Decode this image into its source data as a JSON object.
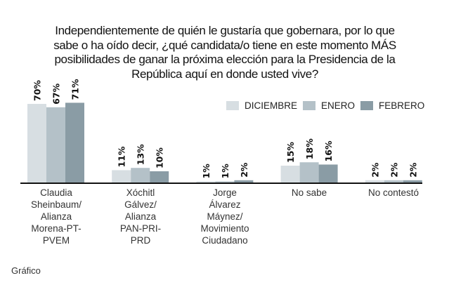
{
  "chart_data": {
    "type": "bar",
    "title": "Independientemente de quién le gustaría que gobernara, por lo que sabe o ha oído decir, ¿qué candidata/o tiene en este momento MÁS posibilidades de ganar la próxima elección para la Presidencia de la República aquí en donde usted vive?",
    "title_lines": [
      "Independientemente de quién le gustaría que gobernara, por lo que",
      "sabe o ha oído decir, ¿qué candidata/o tiene en este momento MÁS",
      "posibilidades de ganar la próxima elección para la Presidencia de la",
      "República aquí en donde usted vive?"
    ],
    "categories": [
      "Claudia\nSheinbaum/\nAlianza\nMorena-PT-\nPVEM",
      "Xóchitl\nGálvez/\nAlianza\nPAN-PRI-\nPRD",
      "Jorge\nÁlvarez\nMáynez/\nMovimiento\nCiudadano",
      "No sabe",
      "No contestó"
    ],
    "series": [
      {
        "name": "DICIEMBRE",
        "color": "#d7dee2",
        "values": [
          70,
          11,
          1,
          15,
          2
        ]
      },
      {
        "name": "ENERO",
        "color": "#b4c1c8",
        "values": [
          67,
          13,
          1,
          18,
          2
        ]
      },
      {
        "name": "FEBRERO",
        "color": "#8a9ca5",
        "values": [
          71,
          10,
          2,
          16,
          2
        ]
      }
    ],
    "value_suffix": "%",
    "xlabel": "",
    "ylabel": "",
    "ylim": [
      0,
      100
    ],
    "grid": false,
    "legend_position": "top-right"
  },
  "footer": {
    "caption": "Gráfico"
  }
}
